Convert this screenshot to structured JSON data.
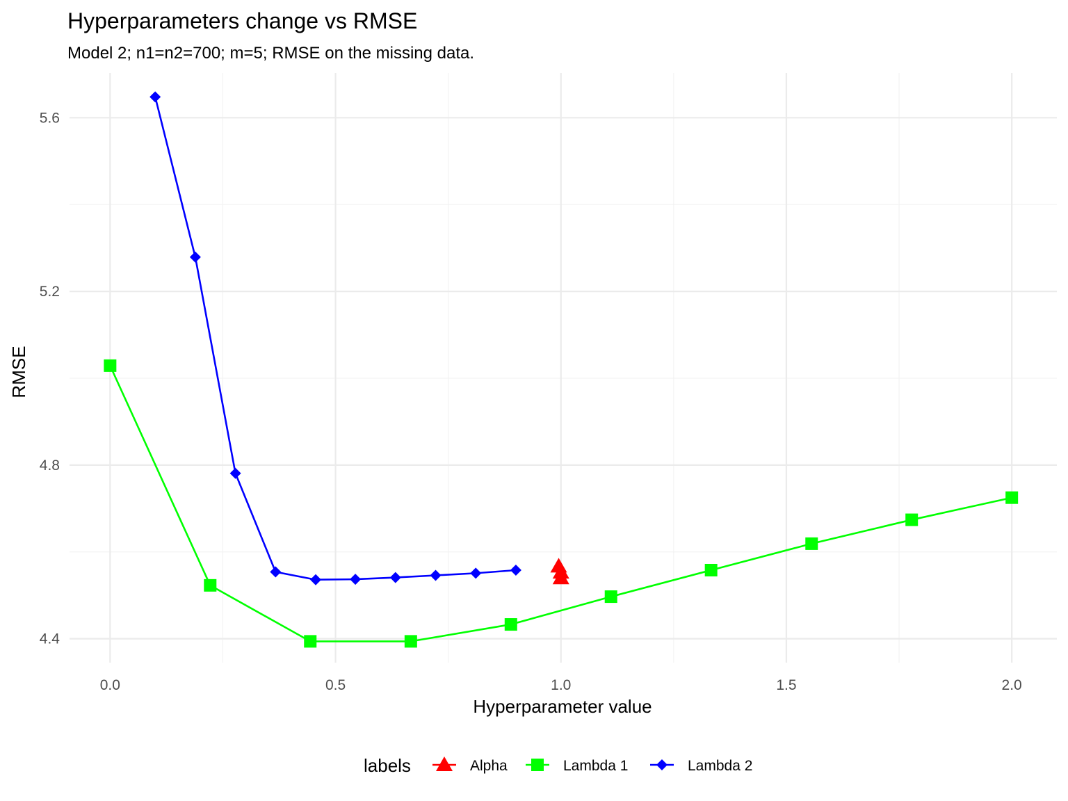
{
  "chart_data": {
    "type": "line",
    "title": "Hyperparameters change vs RMSE",
    "subtitle": "Model 2; n1=n2=700; m=5; RMSE on the missing data.",
    "xlabel": "Hyperparameter value",
    "ylabel": "RMSE",
    "xlim": [
      -0.09,
      2.1
    ],
    "ylim": [
      4.345,
      5.703
    ],
    "x_ticks": [
      0.0,
      0.5,
      1.0,
      1.5,
      2.0
    ],
    "x_tick_labels": [
      "0.0",
      "0.5",
      "1.0",
      "1.5",
      "2.0"
    ],
    "y_ticks": [
      4.4,
      4.8,
      5.2,
      5.6
    ],
    "y_tick_labels": [
      "4.4",
      "4.8",
      "5.2",
      "5.6"
    ],
    "grid": true,
    "legend": {
      "title": "labels",
      "position": "bottom",
      "entries": [
        "Alpha",
        "Lambda 1",
        "Lambda 2"
      ]
    },
    "series": [
      {
        "name": "Alpha",
        "color": "#ff0000",
        "marker": "triangle",
        "line": false,
        "x": [
          0.995,
          1.0,
          1.0
        ],
        "y": [
          4.567,
          4.553,
          4.54
        ]
      },
      {
        "name": "Lambda 1",
        "color": "#00ff00",
        "marker": "square",
        "line": true,
        "x": [
          0.0,
          0.222,
          0.444,
          0.667,
          0.889,
          1.111,
          1.333,
          1.556,
          1.778,
          2.0
        ],
        "y": [
          5.029,
          4.523,
          4.394,
          4.394,
          4.433,
          4.497,
          4.558,
          4.619,
          4.674,
          4.725
        ]
      },
      {
        "name": "Lambda 2",
        "color": "#0000ff",
        "marker": "diamond",
        "line": true,
        "x": [
          0.1,
          0.189,
          0.278,
          0.367,
          0.456,
          0.544,
          0.633,
          0.722,
          0.811,
          0.9
        ],
        "y": [
          5.648,
          5.279,
          4.781,
          4.554,
          4.536,
          4.537,
          4.541,
          4.546,
          4.551,
          4.558
        ]
      }
    ]
  }
}
